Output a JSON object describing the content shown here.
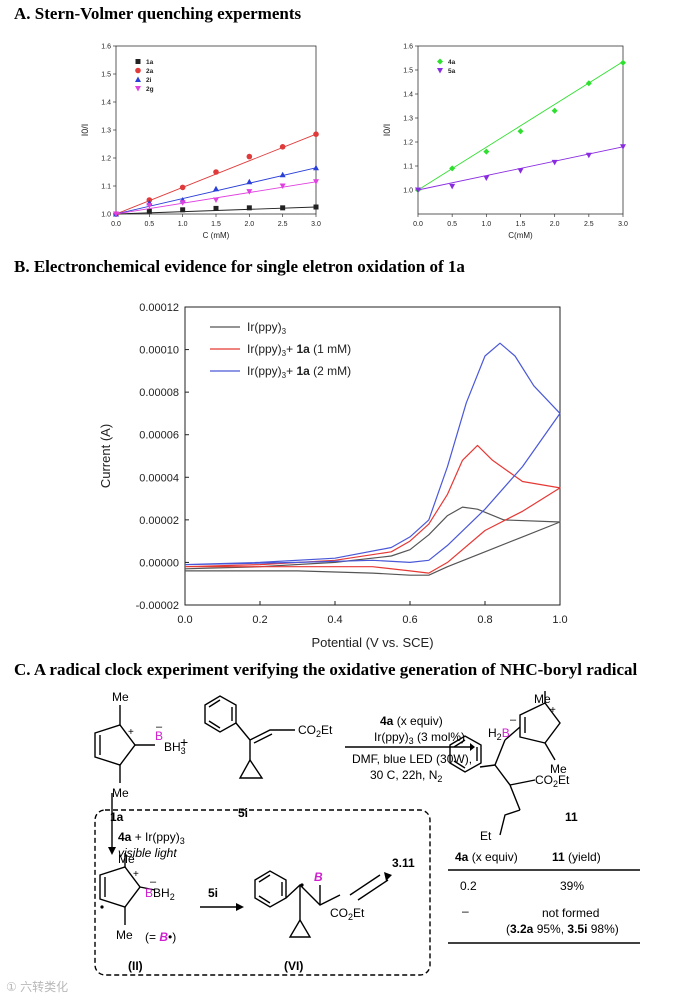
{
  "sections": {
    "a": "A.   Stern-Volmer quenching experments",
    "b": "B.   Electronchemical evidence for single eletron oxidation of 1a",
    "c": "C.   A radical clock experiment verifying the oxidative generation of NHC-boryl radical"
  },
  "colors": {
    "black": "#222222",
    "red": "#e03a3a",
    "blue": "#2a3fd8",
    "magenta": "#e040e0",
    "green": "#2ee02e",
    "purple": "#8a2be2",
    "cv_black": "#555555",
    "cv_red": "#e53935",
    "cv_blue": "#4a58d8"
  },
  "chart_data": [
    {
      "type": "scatter",
      "title": "",
      "xlabel": "C (mM)",
      "ylabel": "I0/I",
      "xlim": [
        0,
        3.0
      ],
      "ylim": [
        1.0,
        1.6
      ],
      "xticks": [
        "0.0",
        "0.5",
        "1.0",
        "1.5",
        "2.0",
        "2.5",
        "3.0"
      ],
      "yticks": [
        "1.0",
        "1.1",
        "1.2",
        "1.3",
        "1.4",
        "1.5",
        "1.6"
      ],
      "x": [
        0,
        0.5,
        1.0,
        1.5,
        2.0,
        2.5,
        3.0
      ],
      "legend_position": "top-left",
      "series": [
        {
          "name": "1a",
          "color": "black",
          "marker": "square",
          "values": [
            1.0,
            1.01,
            1.015,
            1.02,
            1.022,
            1.022,
            1.025
          ],
          "fit_end": 1.025
        },
        {
          "name": "2a",
          "color": "red",
          "marker": "circle",
          "values": [
            1.0,
            1.05,
            1.095,
            1.15,
            1.205,
            1.24,
            1.285
          ],
          "fit_end": 1.285
        },
        {
          "name": "2i",
          "color": "blue",
          "marker": "triangle",
          "values": [
            1.0,
            1.04,
            1.05,
            1.09,
            1.115,
            1.14,
            1.165
          ],
          "fit_end": 1.165
        },
        {
          "name": "2g",
          "color": "magenta",
          "marker": "triangle-down",
          "values": [
            1.0,
            1.03,
            1.04,
            1.05,
            1.08,
            1.1,
            1.115
          ],
          "fit_end": 1.115
        }
      ]
    },
    {
      "type": "scatter",
      "title": "",
      "xlabel": "C(mM)",
      "ylabel": "I0/I",
      "xlim": [
        0,
        3.0
      ],
      "ylim": [
        0.9,
        1.6
      ],
      "xticks": [
        "0.0",
        "0.5",
        "1.0",
        "1.5",
        "2.0",
        "2.5",
        "3.0"
      ],
      "yticks": [
        "1.0",
        "1.1",
        "1.2",
        "1.3",
        "1.4",
        "1.5",
        "1.6"
      ],
      "x": [
        0,
        0.5,
        1.0,
        1.5,
        2.0,
        2.5,
        3.0
      ],
      "legend_position": "top-left",
      "series": [
        {
          "name": "4a",
          "color": "green",
          "marker": "diamond",
          "values": [
            1.0,
            1.09,
            1.16,
            1.245,
            1.33,
            1.445,
            1.53
          ],
          "fit_end": 1.535
        },
        {
          "name": "5a",
          "color": "purple",
          "marker": "triangle-down",
          "values": [
            1.0,
            1.015,
            1.05,
            1.08,
            1.115,
            1.145,
            1.18
          ],
          "fit_end": 1.18
        }
      ]
    },
    {
      "type": "line",
      "title": "",
      "xlabel": "Potential (V vs. SCE)",
      "ylabel": "Current (A)",
      "xlim": [
        0.0,
        1.0
      ],
      "ylim": [
        -2e-05,
        0.00012
      ],
      "xticks": [
        "0.0",
        "0.2",
        "0.4",
        "0.6",
        "0.8",
        "1.0"
      ],
      "yticks": [
        "-0.00002",
        "0.00000",
        "0.00002",
        "0.00004",
        "0.00006",
        "0.00008",
        "0.00010",
        "0.00012"
      ],
      "legend_position": "top-left",
      "legend": [
        {
          "base": "Ir(ppy)",
          "sub": "3",
          "rest": "",
          "bold": "",
          "tail": ""
        },
        {
          "base": "Ir(ppy)",
          "sub": "3",
          "rest": "+ ",
          "bold": "1a",
          "tail": " (1 mM)"
        },
        {
          "base": "Ir(ppy)",
          "sub": "3",
          "rest": "+ ",
          "bold": "1a",
          "tail": " (2 mM)"
        }
      ],
      "series": [
        {
          "name": "Ir(ppy)3",
          "color": "cv_black",
          "x": [
            0,
            0.2,
            0.4,
            0.55,
            0.6,
            0.65,
            0.7,
            0.74,
            0.78,
            0.85,
            1.0,
            1.0,
            0.9,
            0.8,
            0.7,
            0.65,
            0.6,
            0.5,
            0.3,
            0.0
          ],
          "y": [
            -3e-06,
            -2e-06,
            0.0,
            3e-06,
            6e-06,
            1.3e-05,
            2.2e-05,
            2.6e-05,
            2.5e-05,
            2e-05,
            1.9e-05,
            1.9e-05,
            1.2e-05,
            5e-06,
            -2e-06,
            -6e-06,
            -6e-06,
            -5e-06,
            -4e-06,
            -4e-06
          ]
        },
        {
          "name": "Ir(ppy)3 + 1a (1 mM)",
          "color": "cv_red",
          "x": [
            0,
            0.2,
            0.4,
            0.55,
            0.6,
            0.65,
            0.7,
            0.74,
            0.78,
            0.82,
            0.9,
            1.0,
            1.0,
            0.9,
            0.8,
            0.7,
            0.65,
            0.6,
            0.5,
            0.3,
            0.0
          ],
          "y": [
            -2e-06,
            -1e-06,
            1e-06,
            5e-06,
            1e-05,
            1.8e-05,
            3.2e-05,
            4.8e-05,
            5.5e-05,
            4.8e-05,
            3.8e-05,
            3.5e-05,
            3.5e-05,
            2.4e-05,
            1.5e-05,
            0.0,
            -5e-06,
            -4e-06,
            -2e-06,
            -2e-06,
            -2e-06
          ]
        },
        {
          "name": "Ir(ppy)3 + 1a (2 mM)",
          "color": "cv_blue",
          "x": [
            0,
            0.2,
            0.4,
            0.55,
            0.6,
            0.65,
            0.7,
            0.75,
            0.8,
            0.84,
            0.88,
            0.93,
            1.0,
            1.0,
            0.9,
            0.8,
            0.7,
            0.65,
            0.6,
            0.5,
            0.3,
            0.0
          ],
          "y": [
            -1e-06,
            0.0,
            2e-06,
            7e-06,
            1.2e-05,
            2e-05,
            4.5e-05,
            7.5e-05,
            9.7e-05,
            0.000103,
            9.7e-05,
            8.3e-05,
            7e-05,
            7e-05,
            4.5e-05,
            2.5e-05,
            8e-06,
            1e-06,
            0.0,
            1e-06,
            0.0,
            -1e-06
          ]
        }
      ]
    }
  ],
  "scheme": {
    "me": "Me",
    "bh3": "BH",
    "bh3_sub": "3",
    "bh2": "BH",
    "bh2_sub": "2",
    "h2b_h": "H",
    "h2b_sub": "2",
    "b": "B",
    "plus": "+",
    "minus": "–",
    "co2et": "CO",
    "co2et_sub": "2",
    "co2et_tail": "Et",
    "et": "Et",
    "label_1a": "1a",
    "label_5i": "5i",
    "label_11": "11",
    "label_II": "(II)",
    "label_VI": "(VI)",
    "label_311": "3.11",
    "arrow_5i": "5i",
    "cond_1a": "4a",
    "cond_1b": "  (x equiv)",
    "cond_2a": "Ir(ppy)",
    "cond_2sub": "3",
    "cond_2b": " (3 mol%)",
    "cond_3": "DMF, blue LED (30W),",
    "cond_4a": "30 C, 22h, N",
    "cond_4sub": "2",
    "box_1a": "4a",
    "box_1b": " + Ir(ppy)",
    "box_1sub": "3",
    "box_2": "visible light",
    "bdot_pre": "(= ",
    "bdot_b": "B",
    "bdot_post": "•)",
    "table": {
      "h1a": "4a",
      "h1b": " (x equiv)",
      "h2a": "11",
      "h2b": " (yield)",
      "r1c1": "0.2",
      "r1c2": "39%",
      "r2c1": "–",
      "r2c2": "not formed",
      "r2c3a": "(",
      "r2c3b": "3.2a",
      "r2c3c": " 95%, ",
      "r2c3d": "3.5i",
      "r2c3e": " 98%)"
    }
  },
  "watermark": "① 六转类化"
}
